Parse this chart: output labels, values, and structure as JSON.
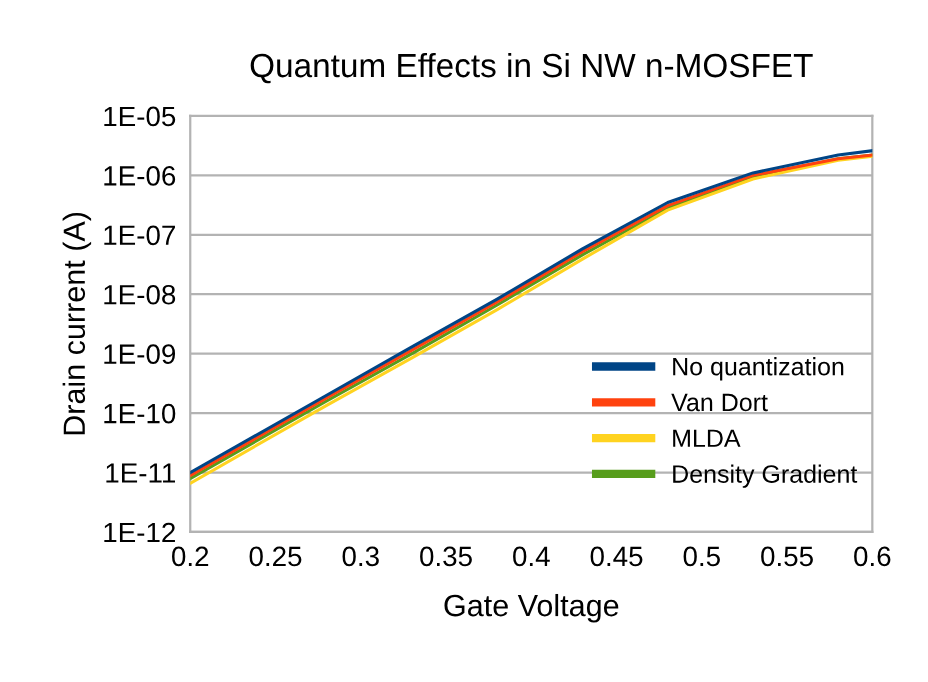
{
  "chart_data": {
    "type": "line",
    "title": "Quantum Effects in Si NW n-MOSFET",
    "xlabel": "Gate Voltage",
    "ylabel": "Drain current (A)",
    "x": [
      0.2,
      0.28,
      0.33,
      0.38,
      0.43,
      0.48,
      0.53,
      0.58,
      0.6
    ],
    "series": [
      {
        "name": "No quantization",
        "color": "#004586",
        "values": [
          1e-11,
          2e-10,
          1.3e-09,
          8.3e-09,
          5.8e-08,
          3.5e-07,
          1.1e-06,
          2.2e-06,
          2.6e-06
        ]
      },
      {
        "name": "Van Dort",
        "color": "#ff420e",
        "values": [
          8.9e-12,
          1.8e-10,
          1.15e-09,
          7.4e-09,
          5.2e-08,
          3.1e-07,
          1e-06,
          1.9e-06,
          2.2e-06
        ]
      },
      {
        "name": "MLDA",
        "color": "#ffd320",
        "values": [
          6.6e-12,
          1.35e-10,
          8.5e-10,
          5.5e-09,
          3.9e-08,
          2.6e-07,
          8.7e-07,
          1.8e-06,
          2.1e-06
        ]
      },
      {
        "name": "Density Gradient",
        "color": "#579d1c",
        "values": [
          7.9e-12,
          1.6e-10,
          1e-09,
          6.6e-09,
          4.6e-08,
          2.8e-07,
          9.5e-07,
          1.9e-06,
          2.2e-06
        ]
      }
    ],
    "log": "y",
    "xlim": [
      0.2,
      0.6
    ],
    "xticks": [
      0.2,
      0.25,
      0.3,
      0.35,
      0.4,
      0.45,
      0.5,
      0.55,
      0.6
    ],
    "ylim": [
      1e-12,
      1e-05
    ],
    "yticks": [
      {
        "value": 1e-12,
        "label": "1E-12"
      },
      {
        "value": 1e-11,
        "label": "1E-11"
      },
      {
        "value": 1e-10,
        "label": "1E-10"
      },
      {
        "value": 1e-09,
        "label": "1E-09"
      },
      {
        "value": 1e-08,
        "label": "1E-08"
      },
      {
        "value": 1e-07,
        "label": "1E-07"
      },
      {
        "value": 1e-06,
        "label": "1E-06"
      },
      {
        "value": 1e-05,
        "label": "1E-05"
      }
    ],
    "grid": "y",
    "legend": "right",
    "marker": "none",
    "line_style": "solid"
  }
}
